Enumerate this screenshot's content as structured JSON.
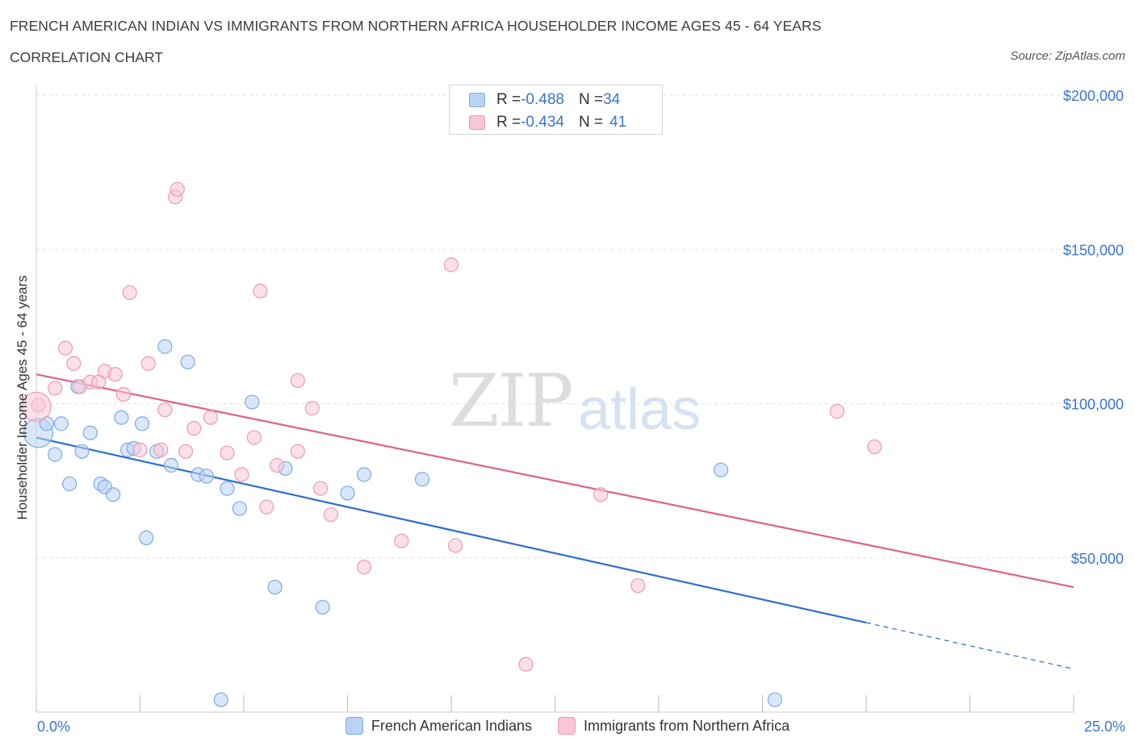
{
  "header": {
    "title": "FRENCH AMERICAN INDIAN VS IMMIGRANTS FROM NORTHERN AFRICA HOUSEHOLDER INCOME AGES 45 - 64 YEARS",
    "subtitle": "CORRELATION CHART",
    "source": "Source: ZipAtlas.com"
  },
  "watermark": {
    "zip": "ZIP",
    "atlas": "atlas"
  },
  "legend_top": {
    "rows": [
      {
        "r_label": "R = ",
        "r_value": "-0.488",
        "n_label": "N = ",
        "n_value": "34"
      },
      {
        "r_label": "R = ",
        "r_value": "-0.434",
        "n_label": "N = ",
        "n_value": "41"
      }
    ]
  },
  "legend_bottom": {
    "items": [
      "French American Indians",
      "Immigrants from Northern Africa"
    ]
  },
  "colors": {
    "blue_fill": "#b9d3f5",
    "blue_stroke": "#7eaae4",
    "blue_line": "#2a6fd4",
    "pink_fill": "#f8c6d4",
    "pink_stroke": "#ee9ab3",
    "pink_line": "#e0608c",
    "axis_label": "#3a76d0",
    "grid": "#e2e2e2"
  },
  "chart_data": {
    "type": "scatter",
    "title": "FRENCH AMERICAN INDIAN VS IMMIGRANTS FROM NORTHERN AFRICA HOUSEHOLDER INCOME AGES 45 - 64 YEARS",
    "xlabel": "",
    "ylabel": "Householder Income Ages 45 - 64 years",
    "xlim": [
      0,
      25
    ],
    "ylim": [
      0,
      200000
    ],
    "x_tick_labels": [
      "0.0%",
      "25.0%"
    ],
    "y_ticks": [
      50000,
      100000,
      150000,
      200000
    ],
    "y_tick_labels": [
      "$50,000",
      "$100,000",
      "$150,000",
      "$200,000"
    ],
    "grid": "horizontal dashed",
    "legend_position": "top-center",
    "series": [
      {
        "name": "French American Indians",
        "r": -0.488,
        "n": 34,
        "points": [
          [
            0.05,
            90500
          ],
          [
            0.25,
            93500
          ],
          [
            0.45,
            83500
          ],
          [
            0.6,
            93500
          ],
          [
            0.8,
            74000
          ],
          [
            1.0,
            105500
          ],
          [
            1.1,
            84500
          ],
          [
            1.3,
            90500
          ],
          [
            1.55,
            74000
          ],
          [
            1.65,
            73000
          ],
          [
            1.85,
            70500
          ],
          [
            2.05,
            95500
          ],
          [
            2.2,
            85000
          ],
          [
            2.35,
            85500
          ],
          [
            2.55,
            93500
          ],
          [
            2.65,
            56500
          ],
          [
            2.9,
            84500
          ],
          [
            3.1,
            118500
          ],
          [
            3.25,
            80000
          ],
          [
            3.65,
            113500
          ],
          [
            3.9,
            77000
          ],
          [
            4.1,
            76500
          ],
          [
            4.45,
            4000
          ],
          [
            4.6,
            72500
          ],
          [
            4.9,
            66000
          ],
          [
            5.2,
            100500
          ],
          [
            5.75,
            40500
          ],
          [
            6.0,
            79000
          ],
          [
            6.9,
            34000
          ],
          [
            7.5,
            71000
          ],
          [
            7.9,
            77000
          ],
          [
            9.3,
            75500
          ],
          [
            16.5,
            78500
          ],
          [
            17.8,
            4000
          ]
        ],
        "trend": {
          "x": [
            0,
            25
          ],
          "y": [
            89000,
            14000
          ],
          "solid_until_x": 20
        }
      },
      {
        "name": "Immigrants from Northern Africa",
        "r": -0.434,
        "n": 41,
        "points": [
          [
            0.05,
            99500
          ],
          [
            0.45,
            105000
          ],
          [
            0.7,
            118000
          ],
          [
            0.9,
            113000
          ],
          [
            1.05,
            105500
          ],
          [
            1.3,
            107000
          ],
          [
            1.5,
            107000
          ],
          [
            1.65,
            110500
          ],
          [
            1.9,
            109500
          ],
          [
            2.1,
            103000
          ],
          [
            2.25,
            136000
          ],
          [
            2.5,
            85000
          ],
          [
            2.7,
            113000
          ],
          [
            3.0,
            85000
          ],
          [
            3.1,
            98000
          ],
          [
            3.35,
            167000
          ],
          [
            3.4,
            169500
          ],
          [
            3.6,
            84500
          ],
          [
            3.8,
            92000
          ],
          [
            4.2,
            95500
          ],
          [
            4.6,
            84000
          ],
          [
            4.95,
            77000
          ],
          [
            5.25,
            89000
          ],
          [
            5.4,
            136500
          ],
          [
            5.55,
            66500
          ],
          [
            5.8,
            80000
          ],
          [
            6.3,
            107500
          ],
          [
            6.3,
            84500
          ],
          [
            6.65,
            98500
          ],
          [
            6.85,
            72500
          ],
          [
            7.1,
            64000
          ],
          [
            7.9,
            47000
          ],
          [
            8.8,
            55500
          ],
          [
            10.0,
            145000
          ],
          [
            10.1,
            54000
          ],
          [
            11.8,
            15500
          ],
          [
            13.6,
            70500
          ],
          [
            14.5,
            41000
          ],
          [
            19.3,
            97500
          ],
          [
            20.2,
            86000
          ],
          [
            0.0,
            99000
          ]
        ],
        "trend": {
          "x": [
            0,
            25
          ],
          "y": [
            109500,
            40500
          ]
        }
      }
    ]
  }
}
